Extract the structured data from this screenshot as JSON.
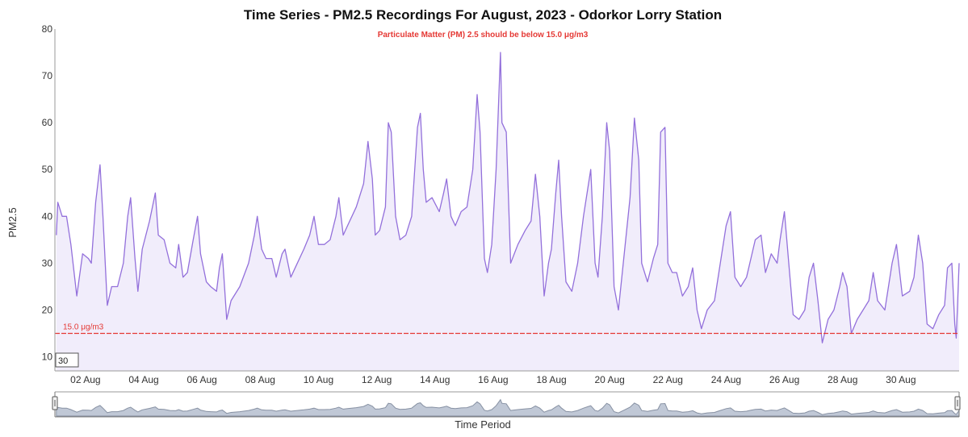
{
  "chart_data": {
    "type": "area",
    "title": "Time Series - PM2.5 Recordings For August, 2023 - Odorkor Lorry Station",
    "subtitle": "Particulate Matter (PM) 2.5 should be below 15.0 μg/m3",
    "ylabel": "PM2.5",
    "xlabel": "Time Period",
    "ylim": [
      7,
      80
    ],
    "xlim": [
      0.95,
      32
    ],
    "yticks": [
      10,
      20,
      30,
      40,
      50,
      60,
      70,
      80
    ],
    "xticks": [
      {
        "day": 2,
        "label": "02 Aug"
      },
      {
        "day": 4,
        "label": "04 Aug"
      },
      {
        "day": 6,
        "label": "06 Aug"
      },
      {
        "day": 8,
        "label": "08 Aug"
      },
      {
        "day": 10,
        "label": "10 Aug"
      },
      {
        "day": 12,
        "label": "12 Aug"
      },
      {
        "day": 14,
        "label": "14 Aug"
      },
      {
        "day": 16,
        "label": "16 Aug"
      },
      {
        "day": 18,
        "label": "18 Aug"
      },
      {
        "day": 20,
        "label": "20 Aug"
      },
      {
        "day": 22,
        "label": "22 Aug"
      },
      {
        "day": 24,
        "label": "24 Aug"
      },
      {
        "day": 26,
        "label": "26 Aug"
      },
      {
        "day": 28,
        "label": "28 Aug"
      },
      {
        "day": 30,
        "label": "30 Aug"
      }
    ],
    "threshold": {
      "value": 15.0,
      "label": "15.0 μg/m3",
      "color": "#e53935"
    },
    "series": [
      {
        "color": "#9370db",
        "fill": "#f1edfb",
        "points": [
          [
            1.0,
            36
          ],
          [
            1.05,
            43
          ],
          [
            1.2,
            40
          ],
          [
            1.35,
            40
          ],
          [
            1.5,
            34
          ],
          [
            1.7,
            23
          ],
          [
            1.9,
            32
          ],
          [
            2.1,
            31
          ],
          [
            2.2,
            30
          ],
          [
            2.35,
            43
          ],
          [
            2.5,
            51
          ],
          [
            2.6,
            40
          ],
          [
            2.75,
            21
          ],
          [
            2.9,
            25
          ],
          [
            3.1,
            25
          ],
          [
            3.3,
            30
          ],
          [
            3.45,
            40
          ],
          [
            3.55,
            44
          ],
          [
            3.7,
            31
          ],
          [
            3.8,
            24
          ],
          [
            3.95,
            33
          ],
          [
            4.2,
            39
          ],
          [
            4.4,
            45
          ],
          [
            4.5,
            36
          ],
          [
            4.7,
            35
          ],
          [
            4.9,
            30
          ],
          [
            5.1,
            29
          ],
          [
            5.2,
            34
          ],
          [
            5.35,
            27
          ],
          [
            5.5,
            28
          ],
          [
            5.7,
            35
          ],
          [
            5.85,
            40
          ],
          [
            5.95,
            32
          ],
          [
            6.15,
            26
          ],
          [
            6.3,
            25
          ],
          [
            6.5,
            24
          ],
          [
            6.6,
            29
          ],
          [
            6.7,
            32
          ],
          [
            6.85,
            18
          ],
          [
            7.0,
            22
          ],
          [
            7.3,
            25
          ],
          [
            7.6,
            30
          ],
          [
            7.8,
            36
          ],
          [
            7.9,
            40
          ],
          [
            8.05,
            33
          ],
          [
            8.2,
            31
          ],
          [
            8.4,
            31
          ],
          [
            8.55,
            27
          ],
          [
            8.75,
            32
          ],
          [
            8.85,
            33
          ],
          [
            9.05,
            27
          ],
          [
            9.2,
            29
          ],
          [
            9.5,
            33
          ],
          [
            9.7,
            36
          ],
          [
            9.85,
            40
          ],
          [
            10.0,
            34
          ],
          [
            10.2,
            34
          ],
          [
            10.4,
            35
          ],
          [
            10.6,
            40
          ],
          [
            10.7,
            44
          ],
          [
            10.85,
            36
          ],
          [
            11.0,
            38
          ],
          [
            11.3,
            42
          ],
          [
            11.55,
            47
          ],
          [
            11.7,
            56
          ],
          [
            11.85,
            48
          ],
          [
            11.95,
            36
          ],
          [
            12.1,
            37
          ],
          [
            12.3,
            42
          ],
          [
            12.4,
            60
          ],
          [
            12.5,
            58
          ],
          [
            12.65,
            40
          ],
          [
            12.8,
            35
          ],
          [
            13.0,
            36
          ],
          [
            13.2,
            40
          ],
          [
            13.4,
            59
          ],
          [
            13.5,
            62
          ],
          [
            13.6,
            50
          ],
          [
            13.7,
            43
          ],
          [
            13.9,
            44
          ],
          [
            14.15,
            41
          ],
          [
            14.3,
            45
          ],
          [
            14.4,
            48
          ],
          [
            14.55,
            40
          ],
          [
            14.7,
            38
          ],
          [
            14.9,
            41
          ],
          [
            15.1,
            42
          ],
          [
            15.3,
            50
          ],
          [
            15.45,
            66
          ],
          [
            15.55,
            58
          ],
          [
            15.7,
            31
          ],
          [
            15.8,
            28
          ],
          [
            15.95,
            34
          ],
          [
            16.1,
            50
          ],
          [
            16.25,
            75
          ],
          [
            16.3,
            60
          ],
          [
            16.45,
            58
          ],
          [
            16.6,
            30
          ],
          [
            16.85,
            34
          ],
          [
            17.1,
            37
          ],
          [
            17.3,
            39
          ],
          [
            17.45,
            49
          ],
          [
            17.6,
            40
          ],
          [
            17.75,
            23
          ],
          [
            17.9,
            30
          ],
          [
            18.0,
            33
          ],
          [
            18.15,
            45
          ],
          [
            18.25,
            52
          ],
          [
            18.35,
            40
          ],
          [
            18.5,
            26
          ],
          [
            18.7,
            24
          ],
          [
            18.9,
            30
          ],
          [
            19.1,
            40
          ],
          [
            19.25,
            46
          ],
          [
            19.35,
            50
          ],
          [
            19.5,
            30
          ],
          [
            19.6,
            27
          ],
          [
            19.75,
            40
          ],
          [
            19.9,
            60
          ],
          [
            20.0,
            54
          ],
          [
            20.15,
            25
          ],
          [
            20.3,
            20
          ],
          [
            20.5,
            32
          ],
          [
            20.7,
            44
          ],
          [
            20.85,
            61
          ],
          [
            21.0,
            52
          ],
          [
            21.1,
            30
          ],
          [
            21.3,
            26
          ],
          [
            21.5,
            31
          ],
          [
            21.65,
            34
          ],
          [
            21.75,
            58
          ],
          [
            21.9,
            59
          ],
          [
            22.0,
            30
          ],
          [
            22.15,
            28
          ],
          [
            22.3,
            28
          ],
          [
            22.5,
            23
          ],
          [
            22.7,
            25
          ],
          [
            22.85,
            29
          ],
          [
            23.0,
            20
          ],
          [
            23.15,
            16
          ],
          [
            23.35,
            20
          ],
          [
            23.6,
            22
          ],
          [
            23.8,
            30
          ],
          [
            24.0,
            38
          ],
          [
            24.15,
            41
          ],
          [
            24.3,
            27
          ],
          [
            24.5,
            25
          ],
          [
            24.7,
            27
          ],
          [
            24.85,
            31
          ],
          [
            25.0,
            35
          ],
          [
            25.2,
            36
          ],
          [
            25.35,
            28
          ],
          [
            25.55,
            32
          ],
          [
            25.75,
            30
          ],
          [
            25.85,
            35
          ],
          [
            26.0,
            41
          ],
          [
            26.15,
            30
          ],
          [
            26.3,
            19
          ],
          [
            26.5,
            18
          ],
          [
            26.7,
            20
          ],
          [
            26.85,
            27
          ],
          [
            27.0,
            30
          ],
          [
            27.15,
            22
          ],
          [
            27.3,
            13
          ],
          [
            27.5,
            18
          ],
          [
            27.7,
            20
          ],
          [
            27.9,
            25
          ],
          [
            28.0,
            28
          ],
          [
            28.15,
            25
          ],
          [
            28.3,
            15
          ],
          [
            28.5,
            18
          ],
          [
            28.7,
            20
          ],
          [
            28.9,
            22
          ],
          [
            29.05,
            28
          ],
          [
            29.2,
            22
          ],
          [
            29.45,
            20
          ],
          [
            29.7,
            30
          ],
          [
            29.85,
            34
          ],
          [
            30.05,
            23
          ],
          [
            30.3,
            24
          ],
          [
            30.45,
            27
          ],
          [
            30.6,
            36
          ],
          [
            30.75,
            30
          ],
          [
            30.9,
            17
          ],
          [
            31.1,
            16
          ],
          [
            31.3,
            19
          ],
          [
            31.5,
            21
          ],
          [
            31.6,
            29
          ],
          [
            31.75,
            30
          ],
          [
            31.85,
            17
          ],
          [
            31.9,
            14
          ],
          [
            32.0,
            30
          ]
        ]
      }
    ]
  },
  "range_selector": {
    "value": "30"
  }
}
